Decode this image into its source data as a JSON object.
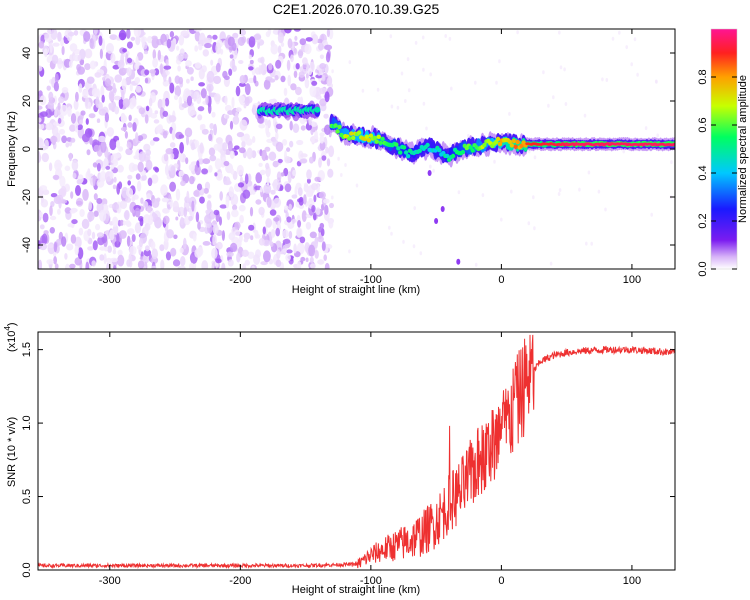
{
  "title": "C2E1.2026.070.10.39.G25",
  "chart_data": [
    {
      "type": "heatmap",
      "xlabel": "Height of straight line (km)",
      "ylabel": "Frequency (Hz)",
      "xlim": [
        -355,
        133
      ],
      "ylim": [
        -50,
        50
      ],
      "xticks": [
        -300,
        -200,
        -100,
        0,
        100
      ],
      "xtick_labels": [
        "-300",
        "-200",
        "-100",
        "0",
        "100"
      ],
      "yticks": [
        -40,
        -20,
        0,
        20,
        40
      ],
      "ytick_labels": [
        "-40",
        "-20",
        "0",
        "20",
        "40"
      ],
      "colorbar": {
        "label": "Normalized spectral amplitude",
        "range": [
          0,
          1
        ],
        "ticks": [
          0.0,
          0.2,
          0.4,
          0.6,
          0.8
        ],
        "tick_labels": [
          "0.0",
          "0.2",
          "0.4",
          "0.6",
          "0.8"
        ],
        "colors": [
          "#ffffff",
          "#d8b4f8",
          "#7b1cf0",
          "#1a1aff",
          "#00c8ff",
          "#00ff60",
          "#c8ff00",
          "#ffa000",
          "#ff2020",
          "#ff1493"
        ]
      },
      "noise_region_x": [
        -355,
        -130
      ],
      "signal_track": {
        "x": [
          -140,
          -120,
          -100,
          -85,
          -70,
          -55,
          -40,
          -30,
          -20,
          -10,
          0,
          10,
          30,
          60,
          100,
          133
        ],
        "y": [
          16,
          6,
          5,
          2,
          -2,
          1,
          -3,
          0,
          1,
          2,
          3,
          2,
          2,
          2,
          2,
          2
        ],
        "amplitude": [
          0.5,
          0.7,
          0.75,
          0.6,
          0.55,
          0.5,
          0.55,
          0.6,
          0.65,
          0.7,
          0.8,
          0.85,
          0.9,
          0.95,
          0.95,
          0.95
        ]
      },
      "early_tone": {
        "x": [
          -185,
          -140
        ],
        "y": 16,
        "amplitude": 0.5
      }
    },
    {
      "type": "line",
      "xlabel": "Height of straight line (km)",
      "ylabel": "SNR (10 * v/v)",
      "multiplier": "(x10",
      "multiplier_exp": "4",
      "multiplier_close": ")",
      "xlim": [
        -355,
        133
      ],
      "ylim": [
        0,
        1.62
      ],
      "xticks": [
        -300,
        -200,
        -100,
        0,
        100
      ],
      "xtick_labels": [
        "-300",
        "-200",
        "-100",
        "0",
        "100"
      ],
      "yticks": [
        0.0,
        0.5,
        1.0,
        1.5
      ],
      "ytick_labels": [
        "0.0",
        "0.5",
        "1.0",
        "1.5"
      ],
      "series": [
        {
          "name": "SNR",
          "color": "#ee3030",
          "x": [
            -355,
            -300,
            -200,
            -150,
            -110,
            -100,
            -90,
            -80,
            -70,
            -60,
            -50,
            -40,
            -30,
            -20,
            -10,
            0,
            10,
            20,
            30,
            40,
            50,
            60,
            80,
            100,
            133
          ],
          "y": [
            0.03,
            0.03,
            0.03,
            0.03,
            0.04,
            0.1,
            0.14,
            0.17,
            0.2,
            0.25,
            0.33,
            0.45,
            0.55,
            0.7,
            0.8,
            0.92,
            1.1,
            1.3,
            1.42,
            1.46,
            1.48,
            1.49,
            1.5,
            1.5,
            1.48
          ]
        }
      ]
    }
  ]
}
